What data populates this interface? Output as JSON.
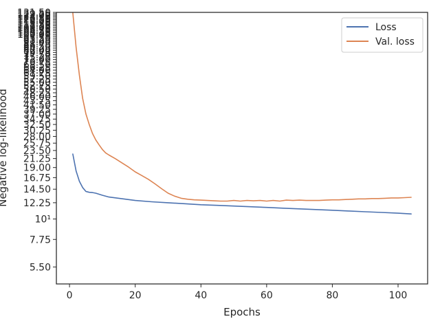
{
  "chart_data": {
    "type": "line",
    "xlabel": "Epochs",
    "ylabel": "Negative log-likelihood",
    "yscale": "log",
    "xlim": [
      -4,
      109
    ],
    "ylim": [
      4.45,
      131.5
    ],
    "x_ticks": [
      0,
      20,
      40,
      60,
      80,
      100
    ],
    "y_ticks": [
      {
        "value": 5.5,
        "label": "5.50"
      },
      {
        "value": 7.75,
        "label": "7.75"
      },
      {
        "value": 10,
        "label": "10¹"
      },
      {
        "value": 12.25,
        "label": "12.25"
      },
      {
        "value": 14.5,
        "label": "14.50"
      },
      {
        "value": 16.75,
        "label": "16.75"
      },
      {
        "value": 19.0,
        "label": "19.00"
      },
      {
        "value": 21.25,
        "label": "21.25"
      },
      {
        "value": 23.5,
        "label": "23.50"
      },
      {
        "value": 25.75,
        "label": "25.75"
      },
      {
        "value": 28.0,
        "label": "28.00"
      },
      {
        "value": 30.25,
        "label": "30.25"
      },
      {
        "value": 32.5,
        "label": "32.50"
      },
      {
        "value": 34.75,
        "label": "34.75"
      },
      {
        "value": 37.0,
        "label": "37.00"
      },
      {
        "value": 39.25,
        "label": "39.25"
      },
      {
        "value": 41.5,
        "label": "41.50"
      },
      {
        "value": 43.75,
        "label": "43.75"
      },
      {
        "value": 46.0,
        "label": "46.00"
      },
      {
        "value": 48.25,
        "label": "48.25"
      },
      {
        "value": 50.5,
        "label": "50.50"
      },
      {
        "value": 52.75,
        "label": "52.75"
      },
      {
        "value": 55.0,
        "label": "55.00"
      },
      {
        "value": 57.25,
        "label": "57.25"
      },
      {
        "value": 59.5,
        "label": "59.50"
      },
      {
        "value": 61.75,
        "label": "61.75"
      },
      {
        "value": 64.0,
        "label": "64.00"
      },
      {
        "value": 66.25,
        "label": "66.25"
      },
      {
        "value": 68.5,
        "label": "68.50"
      },
      {
        "value": 70.75,
        "label": "70.75"
      },
      {
        "value": 73.0,
        "label": "73.00"
      },
      {
        "value": 75.25,
        "label": "75.25"
      },
      {
        "value": 77.5,
        "label": "77.50"
      },
      {
        "value": 79.75,
        "label": "79.75"
      },
      {
        "value": 82.0,
        "label": "82.00"
      },
      {
        "value": 84.25,
        "label": "84.25"
      },
      {
        "value": 86.5,
        "label": "86.50"
      },
      {
        "value": 88.75,
        "label": "88.75"
      },
      {
        "value": 91.0,
        "label": "91.00"
      },
      {
        "value": 93.25,
        "label": "93.25"
      },
      {
        "value": 95.5,
        "label": "95.50"
      },
      {
        "value": 97.75,
        "label": "97.75"
      },
      {
        "value": 100.0,
        "label": "100.00"
      },
      {
        "value": 102.25,
        "label": "102.25"
      },
      {
        "value": 104.5,
        "label": "104.50"
      },
      {
        "value": 106.75,
        "label": "106.75"
      },
      {
        "value": 109.0,
        "label": "109.00"
      },
      {
        "value": 111.25,
        "label": "111.25"
      },
      {
        "value": 113.5,
        "label": "113.50"
      },
      {
        "value": 115.75,
        "label": "115.75"
      },
      {
        "value": 118.0,
        "label": "118.00"
      },
      {
        "value": 120.25,
        "label": "120.25"
      },
      {
        "value": 122.5,
        "label": "122.50"
      },
      {
        "value": 124.75,
        "label": "124.75"
      },
      {
        "value": 127.0,
        "label": "127.00"
      },
      {
        "value": 129.25,
        "label": "129.25"
      },
      {
        "value": 131.5,
        "label": "131.50"
      }
    ],
    "legend": {
      "position": "top-right"
    },
    "grid": false,
    "series": [
      {
        "name": "Loss",
        "color": "#4c72b0",
        "x": [
          1,
          2,
          3,
          4,
          5,
          6,
          7,
          8,
          10,
          12,
          15,
          20,
          25,
          30,
          35,
          40,
          45,
          50,
          55,
          60,
          65,
          70,
          75,
          80,
          85,
          90,
          95,
          100,
          104
        ],
        "y": [
          22.5,
          18.2,
          16.0,
          14.8,
          14.1,
          13.95,
          13.9,
          13.8,
          13.45,
          13.15,
          12.95,
          12.6,
          12.4,
          12.25,
          12.1,
          11.95,
          11.85,
          11.75,
          11.65,
          11.55,
          11.45,
          11.35,
          11.25,
          11.15,
          11.05,
          10.95,
          10.85,
          10.75,
          10.65
        ]
      },
      {
        "name": "Val. loss",
        "color": "#dd8452",
        "x": [
          1,
          2,
          3,
          4,
          5,
          6,
          7,
          8,
          9,
          10,
          11,
          12,
          14,
          16,
          18,
          20,
          22,
          24,
          26,
          28,
          30,
          32,
          34,
          36,
          38,
          40,
          42,
          44,
          46,
          48,
          50,
          52,
          54,
          56,
          58,
          60,
          62,
          64,
          66,
          68,
          70,
          72,
          74,
          76,
          78,
          80,
          82,
          84,
          86,
          88,
          90,
          92,
          94,
          96,
          98,
          100,
          102,
          104
        ],
        "y": [
          131.0,
          85.0,
          60.0,
          45.0,
          37.0,
          32.5,
          29.0,
          26.8,
          25.2,
          23.8,
          22.8,
          22.2,
          21.2,
          20.1,
          19.1,
          18.0,
          17.2,
          16.4,
          15.5,
          14.6,
          13.8,
          13.3,
          12.95,
          12.8,
          12.7,
          12.65,
          12.6,
          12.55,
          12.5,
          12.5,
          12.6,
          12.5,
          12.6,
          12.55,
          12.6,
          12.5,
          12.6,
          12.5,
          12.65,
          12.6,
          12.65,
          12.6,
          12.6,
          12.6,
          12.65,
          12.7,
          12.7,
          12.75,
          12.8,
          12.85,
          12.85,
          12.9,
          12.9,
          12.95,
          13.0,
          13.0,
          13.05,
          13.1
        ]
      }
    ]
  }
}
